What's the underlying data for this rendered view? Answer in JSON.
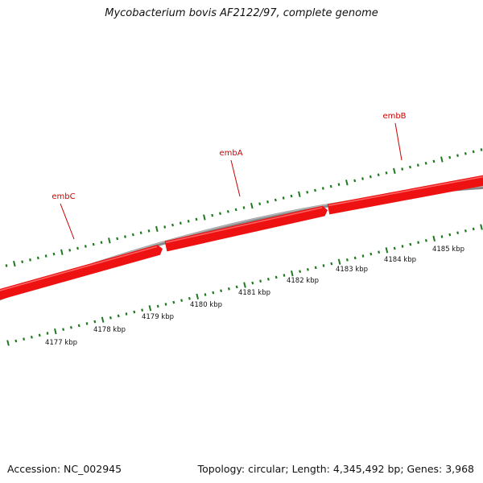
{
  "title": "Mycobacterium bovis AF2122/97, complete genome",
  "footer": {
    "accession": "Accession: NC_002945",
    "summary": "Topology: circular; Length: 4,345,492 bp; Genes: 3,968"
  },
  "colors": {
    "gene_fill": "#ee1111",
    "gene_highlight": "#ff6666",
    "backbone": "#888888",
    "tick": "#1f7a1f",
    "gene_label": "#cc0000"
  },
  "genes": [
    {
      "name": "embC",
      "direction": "forward"
    },
    {
      "name": "embA",
      "direction": "forward"
    },
    {
      "name": "embB",
      "direction": "forward"
    }
  ],
  "scale": {
    "unit": "kbp",
    "labels": [
      "4177 kbp",
      "4178 kbp",
      "4179 kbp",
      "4180 kbp",
      "4181 kbp",
      "4182 kbp",
      "4183 kbp",
      "4184 kbp",
      "4185 kbp"
    ]
  }
}
